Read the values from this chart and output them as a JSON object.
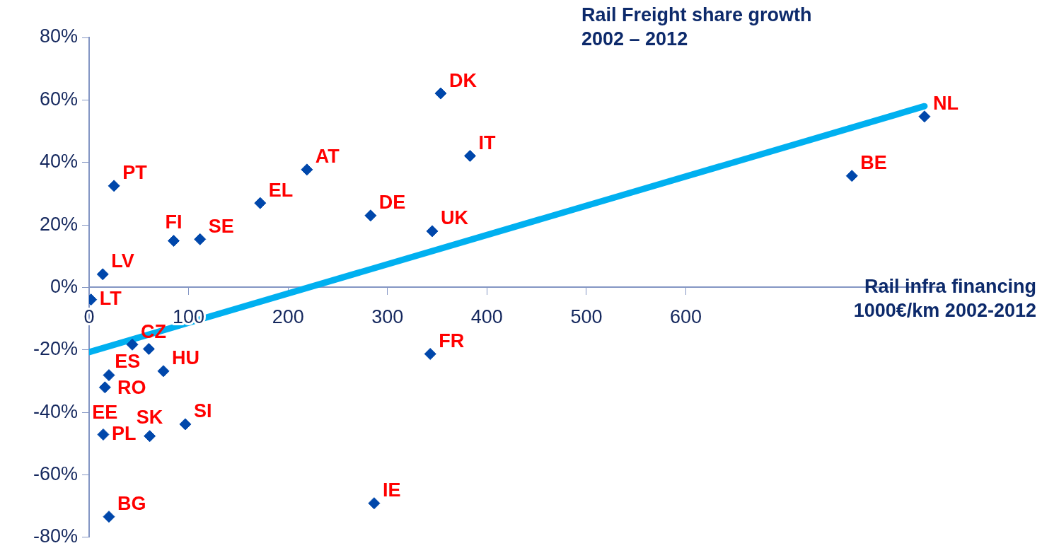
{
  "chart_data": {
    "type": "scatter",
    "xlabel": "Rail infra financing\n1000€/km 2002-2012",
    "ylabel": "Rail Freight share growth\n2002 – 2012",
    "xlim": [
      0,
      860
    ],
    "xticks": [
      0,
      100,
      200,
      300,
      400,
      500,
      600
    ],
    "ylim": [
      -80,
      80
    ],
    "yticks": [
      {
        "value": -80,
        "label": "-80%"
      },
      {
        "value": -60,
        "label": "-60%"
      },
      {
        "value": -40,
        "label": "-40%"
      },
      {
        "value": -20,
        "label": "-20%"
      },
      {
        "value": 0,
        "label": "0%"
      },
      {
        "value": 20,
        "label": "20%"
      },
      {
        "value": 40,
        "label": "40%"
      },
      {
        "value": 60,
        "label": "60%"
      },
      {
        "value": 80,
        "label": "80%"
      }
    ],
    "grid": false,
    "legend": false,
    "marker": "diamond",
    "series": [
      {
        "color": "#0047ab",
        "x": [
          25,
          219,
          172,
          283,
          345,
          85,
          111.5,
          13.7,
          1.9,
          383,
          43.4,
          60,
          343,
          19.9,
          74.7,
          15.9,
          96.7,
          14.2,
          60.9,
          286.6,
          19.9,
          353.5,
          840,
          767
        ],
        "values": [
          32.5,
          37.7,
          27,
          23,
          18,
          14.9,
          15.4,
          4.2,
          -3.9,
          42.1,
          -18.3,
          -19.7,
          -21.3,
          -28.1,
          -26.8,
          -32,
          -43.8,
          -47.1,
          -47.6,
          -69.1,
          -73.4,
          62.1,
          54.7,
          35.7
        ]
      },
      {
        "type": "line",
        "color": "#00b0f0",
        "marker": "none",
        "x": [
          0,
          840
        ],
        "values": [
          -20.7,
          58
        ]
      }
    ],
    "annotations": [
      {
        "text": "PT",
        "x": 25,
        "y": 32.5
      },
      {
        "text": "AT",
        "x": 219,
        "y": 37.7
      },
      {
        "text": "EL",
        "x": 172,
        "y": 27
      },
      {
        "text": "DE",
        "x": 283,
        "y": 23
      },
      {
        "text": "UK",
        "x": 345,
        "y": 18
      },
      {
        "text": "FI",
        "x": 85,
        "y": 14.9
      },
      {
        "text": "SE",
        "x": 111.5,
        "y": 15.4
      },
      {
        "text": "LV",
        "x": 13.7,
        "y": 4.2
      },
      {
        "text": "LT",
        "x": 1.9,
        "y": -3.9
      },
      {
        "text": "IT",
        "x": 383,
        "y": 42.1
      },
      {
        "text": "CZ",
        "x": 43.4,
        "y": -18.3
      },
      {
        "text": "ES",
        "x": 60,
        "y": -19.7
      },
      {
        "text": "FR",
        "x": 343,
        "y": -21.3
      },
      {
        "text": "RO",
        "x": 19.9,
        "y": -28.1
      },
      {
        "text": "HU",
        "x": 74.7,
        "y": -26.8
      },
      {
        "text": "EE",
        "x": 15.9,
        "y": -32
      },
      {
        "text": "SI",
        "x": 96.7,
        "y": -43.8
      },
      {
        "text": "PL",
        "x": 14.2,
        "y": -47.1
      },
      {
        "text": "SK",
        "x": 60.9,
        "y": -47.6
      },
      {
        "text": "IE",
        "x": 286.6,
        "y": -69.1
      },
      {
        "text": "BG",
        "x": 19.9,
        "y": -73.4
      },
      {
        "text": "DK",
        "x": 353.5,
        "y": 62.1
      },
      {
        "text": "NL",
        "x": 840,
        "y": 54.7
      },
      {
        "text": "BE",
        "x": 767,
        "y": 35.7
      }
    ]
  }
}
